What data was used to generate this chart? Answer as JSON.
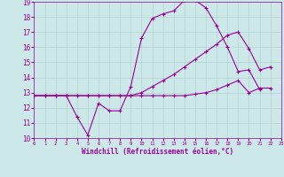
{
  "xlabel": "Windchill (Refroidissement éolien,°C)",
  "xlim": [
    0,
    23
  ],
  "ylim": [
    10,
    19
  ],
  "yticks": [
    10,
    11,
    12,
    13,
    14,
    15,
    16,
    17,
    18,
    19
  ],
  "xticks": [
    0,
    1,
    2,
    3,
    4,
    5,
    6,
    7,
    8,
    9,
    10,
    11,
    12,
    13,
    14,
    15,
    16,
    17,
    18,
    19,
    20,
    21,
    22,
    23
  ],
  "background_color": "#cce8e8",
  "line_color": "#990099",
  "grid_color": "#aacccc",
  "line1_x": [
    0,
    1,
    2,
    3,
    4,
    5,
    6,
    7,
    8,
    9,
    10,
    11,
    12,
    13,
    14,
    15,
    16,
    17,
    18,
    19,
    20,
    21
  ],
  "line1_y": [
    12.8,
    12.8,
    12.8,
    12.8,
    11.4,
    10.2,
    12.3,
    11.8,
    11.8,
    13.4,
    16.6,
    17.9,
    18.2,
    18.4,
    19.1,
    19.1,
    18.6,
    17.4,
    16.0,
    14.4,
    14.5,
    13.2
  ],
  "line2_x": [
    0,
    1,
    2,
    3,
    4,
    5,
    6,
    7,
    8,
    9,
    10,
    11,
    12,
    13,
    14,
    15,
    16,
    17,
    18,
    19,
    20,
    21,
    22
  ],
  "line2_y": [
    12.8,
    12.8,
    12.8,
    12.8,
    12.8,
    12.8,
    12.8,
    12.8,
    12.8,
    12.8,
    13.0,
    13.4,
    13.8,
    14.2,
    14.7,
    15.2,
    15.7,
    16.2,
    16.8,
    17.0,
    15.9,
    14.5,
    14.7
  ],
  "line3_x": [
    0,
    1,
    2,
    3,
    4,
    5,
    6,
    7,
    8,
    9,
    10,
    11,
    12,
    13,
    14,
    15,
    16,
    17,
    18,
    19,
    20,
    21,
    22
  ],
  "line3_y": [
    12.8,
    12.8,
    12.8,
    12.8,
    12.8,
    12.8,
    12.8,
    12.8,
    12.8,
    12.8,
    12.8,
    12.8,
    12.8,
    12.8,
    12.8,
    12.9,
    13.0,
    13.2,
    13.5,
    13.8,
    13.0,
    13.3,
    13.3
  ]
}
